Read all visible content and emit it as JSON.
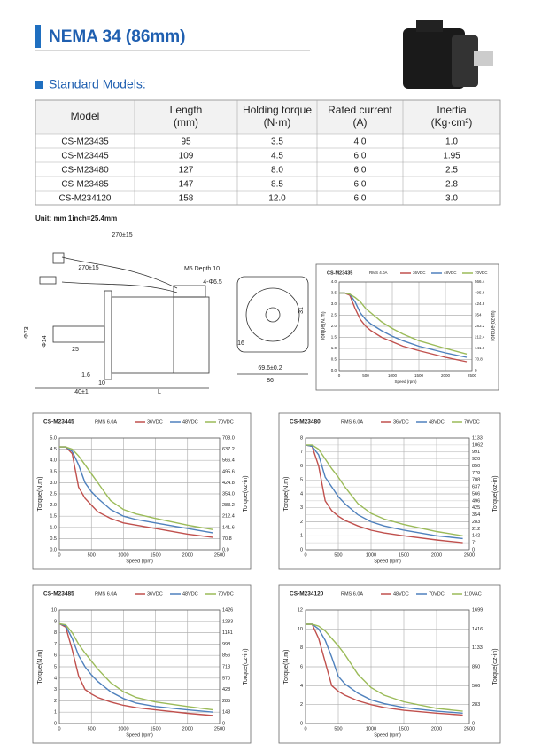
{
  "header": {
    "title": "NEMA 34 (86mm)"
  },
  "section": {
    "title": "Standard Models:"
  },
  "table": {
    "header": [
      [
        "Model"
      ],
      [
        "Length",
        "(mm)"
      ],
      [
        "Holding torque",
        "(N·m)"
      ],
      [
        "Rated current",
        "(A)"
      ],
      [
        "Inertia",
        "(Kg·cm²)"
      ]
    ],
    "rows": [
      [
        "CS-M23435",
        "95",
        "3.5",
        "4.0",
        "1.0"
      ],
      [
        "CS-M23445",
        "109",
        "4.5",
        "6.0",
        "1.95"
      ],
      [
        "CS-M23480",
        "127",
        "8.0",
        "6.0",
        "2.5"
      ],
      [
        "CS-M23485",
        "147",
        "8.5",
        "6.0",
        "2.8"
      ],
      [
        "CS-M234120",
        "158",
        "12.0",
        "6.0",
        "3.0"
      ]
    ]
  },
  "unit_note": "Unit: mm   1inch=25.4mm",
  "drawing": {
    "labels": [
      "270±15",
      "270±15",
      "M5 Depth 10",
      "4-Φ6.5",
      "Φ73",
      "Φ14",
      "25",
      "1.6",
      "10",
      "40±1",
      "L",
      "31",
      "16",
      "69.6±0.2",
      "86"
    ]
  },
  "charts": [
    {
      "type": "line",
      "title": "CS-M23435",
      "subtitle": "RMS 4.0A",
      "xlabel": "Speed (rpm)",
      "ylabel": "Torque(N.m)",
      "y2label": "Torque(oz-in)",
      "x": [
        0,
        100,
        200,
        300,
        400,
        500,
        600,
        800,
        1000,
        1200,
        1500,
        2000,
        2400
      ],
      "xlim": [
        0,
        2500
      ],
      "xticks": [
        0,
        500,
        1000,
        1500,
        2000,
        2500
      ],
      "ylim": [
        0,
        4
      ],
      "yticks": [
        {
          "value": 0,
          "label": "0.0"
        },
        0.5,
        {
          "value": 1,
          "label": "1.0"
        },
        1.5,
        {
          "value": 2,
          "label": "2.0"
        },
        2.5,
        {
          "value": 3,
          "label": "3.0"
        },
        3.5,
        {
          "value": 4,
          "label": "4.0"
        }
      ],
      "y2lim": [
        0,
        566.4
      ],
      "y2ticks": [
        0,
        70.8,
        141.6,
        212.4,
        283.2,
        354,
        424.8,
        495.6,
        566.4
      ],
      "series": [
        {
          "name": "36VDC",
          "color": "#c0504d",
          "values": [
            3.5,
            3.5,
            3.4,
            2.8,
            2.3,
            2.0,
            1.8,
            1.5,
            1.3,
            1.1,
            0.9,
            0.6,
            0.4
          ]
        },
        {
          "name": "48VDC",
          "color": "#4f81bd",
          "values": [
            3.5,
            3.5,
            3.45,
            3.1,
            2.6,
            2.3,
            2.1,
            1.8,
            1.55,
            1.35,
            1.1,
            0.8,
            0.6
          ]
        },
        {
          "name": "70VDC",
          "color": "#9bbb59",
          "values": [
            3.5,
            3.5,
            3.45,
            3.3,
            3.1,
            2.8,
            2.6,
            2.2,
            1.9,
            1.65,
            1.35,
            1.0,
            0.75
          ]
        }
      ]
    },
    {
      "type": "line",
      "title": "CS-M23445",
      "subtitle": "RMS 6.0A",
      "xlabel": "Speed (rpm)",
      "ylabel": "Torque(N.m)",
      "y2label": "Torque(oz-in)",
      "x": [
        0,
        100,
        200,
        300,
        400,
        500,
        600,
        800,
        1000,
        1200,
        1500,
        2000,
        2400
      ],
      "xlim": [
        0,
        2500
      ],
      "xticks": [
        0,
        500,
        1000,
        1500,
        2000,
        2500
      ],
      "ylim": [
        0,
        5
      ],
      "yticks": [
        {
          "value": 0,
          "label": "0.0"
        },
        0.5,
        {
          "value": 1,
          "label": "1.0"
        },
        1.5,
        {
          "value": 2,
          "label": "2.0"
        },
        2.5,
        {
          "value": 3,
          "label": "3.0"
        },
        3.5,
        {
          "value": 4,
          "label": "4.0"
        },
        4.5,
        {
          "value": 5,
          "label": "5.0"
        }
      ],
      "y2lim": [
        0,
        708
      ],
      "y2ticks": [
        {
          "value": 0,
          "label": "0.0"
        },
        70.8,
        141.6,
        212.4,
        283.2,
        {
          "value": 354,
          "label": "354.0"
        },
        424.8,
        495.6,
        566.4,
        637.2,
        {
          "value": 708,
          "label": "708.0"
        }
      ],
      "series": [
        {
          "name": "36VDC",
          "color": "#c0504d",
          "values": [
            4.6,
            4.6,
            4.3,
            2.8,
            2.3,
            2.0,
            1.7,
            1.4,
            1.2,
            1.1,
            0.95,
            0.7,
            0.55
          ]
        },
        {
          "name": "48VDC",
          "color": "#4f81bd",
          "values": [
            4.6,
            4.6,
            4.4,
            3.8,
            3.0,
            2.6,
            2.3,
            1.8,
            1.5,
            1.35,
            1.2,
            0.95,
            0.75
          ]
        },
        {
          "name": "70VDC",
          "color": "#9bbb59",
          "values": [
            4.6,
            4.6,
            4.5,
            4.2,
            3.8,
            3.4,
            3.0,
            2.2,
            1.8,
            1.6,
            1.4,
            1.1,
            0.9
          ]
        }
      ]
    },
    {
      "type": "line",
      "title": "CS-M23480",
      "subtitle": "RMS 6.0A",
      "xlabel": "Speed (rpm)",
      "ylabel": "Torque(N.m)",
      "y2label": "Torque(oz-in)",
      "x": [
        0,
        100,
        200,
        300,
        400,
        500,
        600,
        800,
        1000,
        1200,
        1500,
        2000,
        2400
      ],
      "xlim": [
        0,
        2500
      ],
      "xticks": [
        0,
        500,
        1000,
        1500,
        2000,
        2500
      ],
      "ylim": [
        0,
        8
      ],
      "yticks": [
        0,
        1,
        2,
        3,
        4,
        5,
        6,
        7,
        8
      ],
      "y2lim": [
        0,
        1133
      ],
      "y2ticks": [
        0,
        71,
        142,
        212,
        283,
        354,
        425,
        496,
        566,
        637,
        708,
        779,
        850,
        920,
        991,
        1062,
        1133
      ],
      "series": [
        {
          "name": "36VDC",
          "color": "#c0504d",
          "values": [
            7.5,
            7.4,
            6.0,
            3.5,
            2.8,
            2.4,
            2.1,
            1.7,
            1.4,
            1.2,
            1.0,
            0.7,
            0.5
          ]
        },
        {
          "name": "48VDC",
          "color": "#4f81bd",
          "values": [
            7.5,
            7.4,
            6.8,
            5.2,
            4.5,
            3.8,
            3.3,
            2.5,
            2.0,
            1.7,
            1.4,
            1.0,
            0.8
          ]
        },
        {
          "name": "70VDC",
          "color": "#9bbb59",
          "values": [
            7.5,
            7.5,
            7.2,
            6.5,
            5.8,
            5.2,
            4.5,
            3.3,
            2.6,
            2.2,
            1.8,
            1.3,
            1.0
          ]
        }
      ]
    },
    {
      "type": "line",
      "title": "CS-M23485",
      "subtitle": "RMS 6.0A",
      "xlabel": "Speed (rpm)",
      "ylabel": "Torque(N.m)",
      "y2label": "Torque(oz-in)",
      "x": [
        0,
        100,
        200,
        300,
        400,
        500,
        600,
        800,
        1000,
        1200,
        1500,
        2000,
        2400
      ],
      "xlim": [
        0,
        2500
      ],
      "xticks": [
        0,
        500,
        1000,
        1500,
        2000,
        2500
      ],
      "ylim": [
        0,
        10
      ],
      "yticks": [
        0,
        1,
        2,
        3,
        4,
        5,
        6,
        7,
        8,
        9,
        10
      ],
      "y2lim": [
        0,
        1426
      ],
      "y2ticks": [
        0,
        143,
        285,
        428,
        570,
        713,
        856,
        998,
        1141,
        1283,
        1426
      ],
      "series": [
        {
          "name": "36VDC",
          "color": "#c0504d",
          "values": [
            8.8,
            8.5,
            6.5,
            4.2,
            3.0,
            2.6,
            2.3,
            1.9,
            1.6,
            1.4,
            1.2,
            0.9,
            0.7
          ]
        },
        {
          "name": "48VDC",
          "color": "#4f81bd",
          "values": [
            8.8,
            8.6,
            7.5,
            6.0,
            5.0,
            4.3,
            3.7,
            2.8,
            2.2,
            1.8,
            1.5,
            1.2,
            1.0
          ]
        },
        {
          "name": "70VDC",
          "color": "#9bbb59",
          "values": [
            8.8,
            8.7,
            8.0,
            7.0,
            6.2,
            5.5,
            4.8,
            3.6,
            2.8,
            2.3,
            1.9,
            1.5,
            1.2
          ]
        }
      ]
    },
    {
      "type": "line",
      "title": "CS-M234120",
      "subtitle": "RMS 6.0A",
      "xlabel": "Speed (rpm)",
      "ylabel": "Torque(N.m)",
      "y2label": "Torque(oz-in)",
      "x": [
        0,
        100,
        200,
        300,
        400,
        500,
        600,
        800,
        1000,
        1200,
        1500,
        2000,
        2400
      ],
      "xlim": [
        0,
        2500
      ],
      "xticks": [
        0,
        500,
        1000,
        1500,
        2000,
        2500
      ],
      "ylim": [
        0,
        12
      ],
      "yticks": [
        0,
        2,
        4,
        6,
        8,
        10,
        12
      ],
      "y2lim": [
        0,
        1699
      ],
      "y2ticks": [
        0,
        283,
        566,
        850,
        1133,
        1416,
        1699
      ],
      "series": [
        {
          "name": "48VDC",
          "color": "#c0504d",
          "values": [
            10.5,
            10.5,
            9.0,
            6.5,
            4.0,
            3.4,
            3.0,
            2.4,
            2.0,
            1.7,
            1.4,
            1.1,
            0.9
          ]
        },
        {
          "name": "70VDC",
          "color": "#4f81bd",
          "values": [
            10.5,
            10.5,
            10.0,
            8.8,
            7.0,
            5.0,
            4.2,
            3.2,
            2.5,
            2.1,
            1.7,
            1.3,
            1.1
          ]
        },
        {
          "name": "110VAC",
          "color": "#9bbb59",
          "values": [
            10.5,
            10.5,
            10.3,
            9.8,
            9.0,
            8.2,
            7.3,
            5.2,
            3.8,
            3.0,
            2.3,
            1.6,
            1.3
          ]
        }
      ]
    }
  ]
}
